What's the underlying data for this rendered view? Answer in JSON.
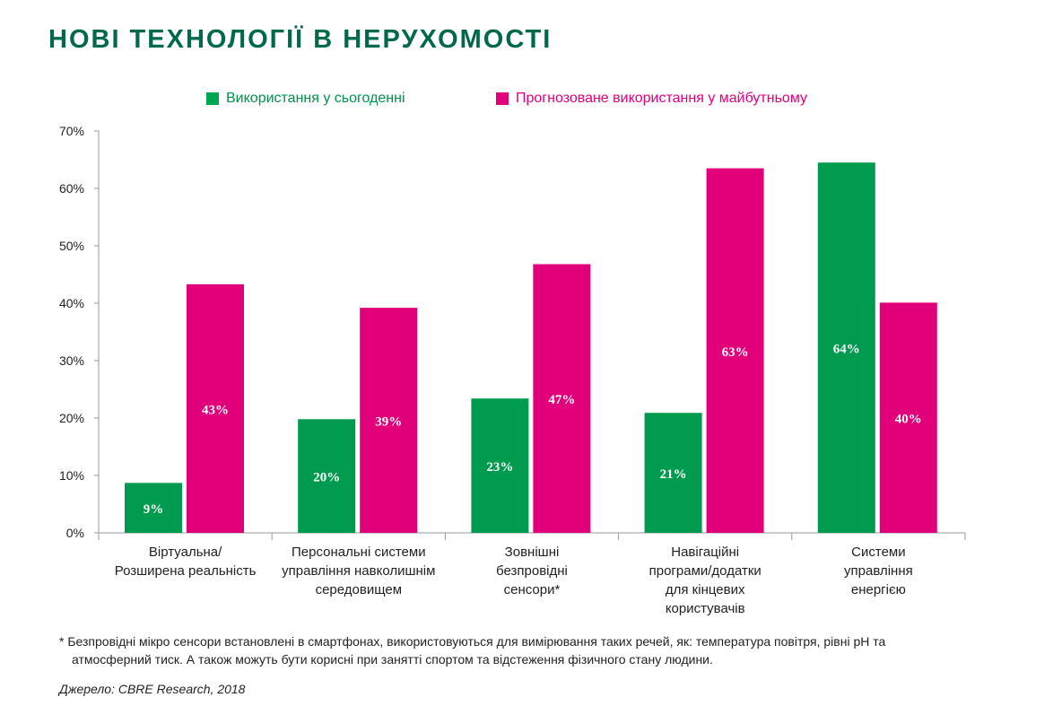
{
  "title": "НОВІ ТЕХНОЛОГІЇ В НЕРУХОМОСТІ",
  "chart_data": {
    "type": "bar",
    "categories": [
      [
        "Віртуальна/",
        "Розширена реальність"
      ],
      [
        "Персональні системи",
        "управління навколишнім",
        "середовищем"
      ],
      [
        "Зовнішні",
        "безпровідні",
        "сенсори*"
      ],
      [
        "Навігаційні",
        "програми/додатки",
        "для кінцевих",
        "користувачів"
      ],
      [
        "Системи",
        "управління",
        "енергією"
      ]
    ],
    "series": [
      {
        "name": "Використання у сьогоденні",
        "color": "#009b4e",
        "values": [
          9,
          20,
          23,
          21,
          64
        ],
        "value_heights": [
          8.7,
          19.8,
          23.4,
          20.9,
          64.5
        ]
      },
      {
        "name": "Прогнозоване використання у майбутньому",
        "color": "#e2007a",
        "values": [
          43,
          39,
          47,
          63,
          40
        ],
        "value_heights": [
          43.3,
          39.2,
          46.8,
          63.5,
          40.1
        ]
      }
    ],
    "data_labels": [
      [
        "9%",
        "20%",
        "23%",
        "21%",
        "64%"
      ],
      [
        "43%",
        "39%",
        "47%",
        "63%",
        "40%"
      ]
    ],
    "ylim": [
      0,
      70
    ],
    "yticks": [
      "0%",
      "10%",
      "20%",
      "30%",
      "40%",
      "50%",
      "60%",
      "70%"
    ],
    "grid": false,
    "legend": "top"
  },
  "footnote": [
    "*  Безпровідні мікро сенсори встановлені в смартфонах, використовуються для вимірювання таких речей, як: температура повітря, рівні pH та",
    "атмосферний тиск. А також можуть бути корисні при занятті спортом та відстеження фізичного стану людини."
  ],
  "source": "Джерело: CBRE Research, 2018"
}
